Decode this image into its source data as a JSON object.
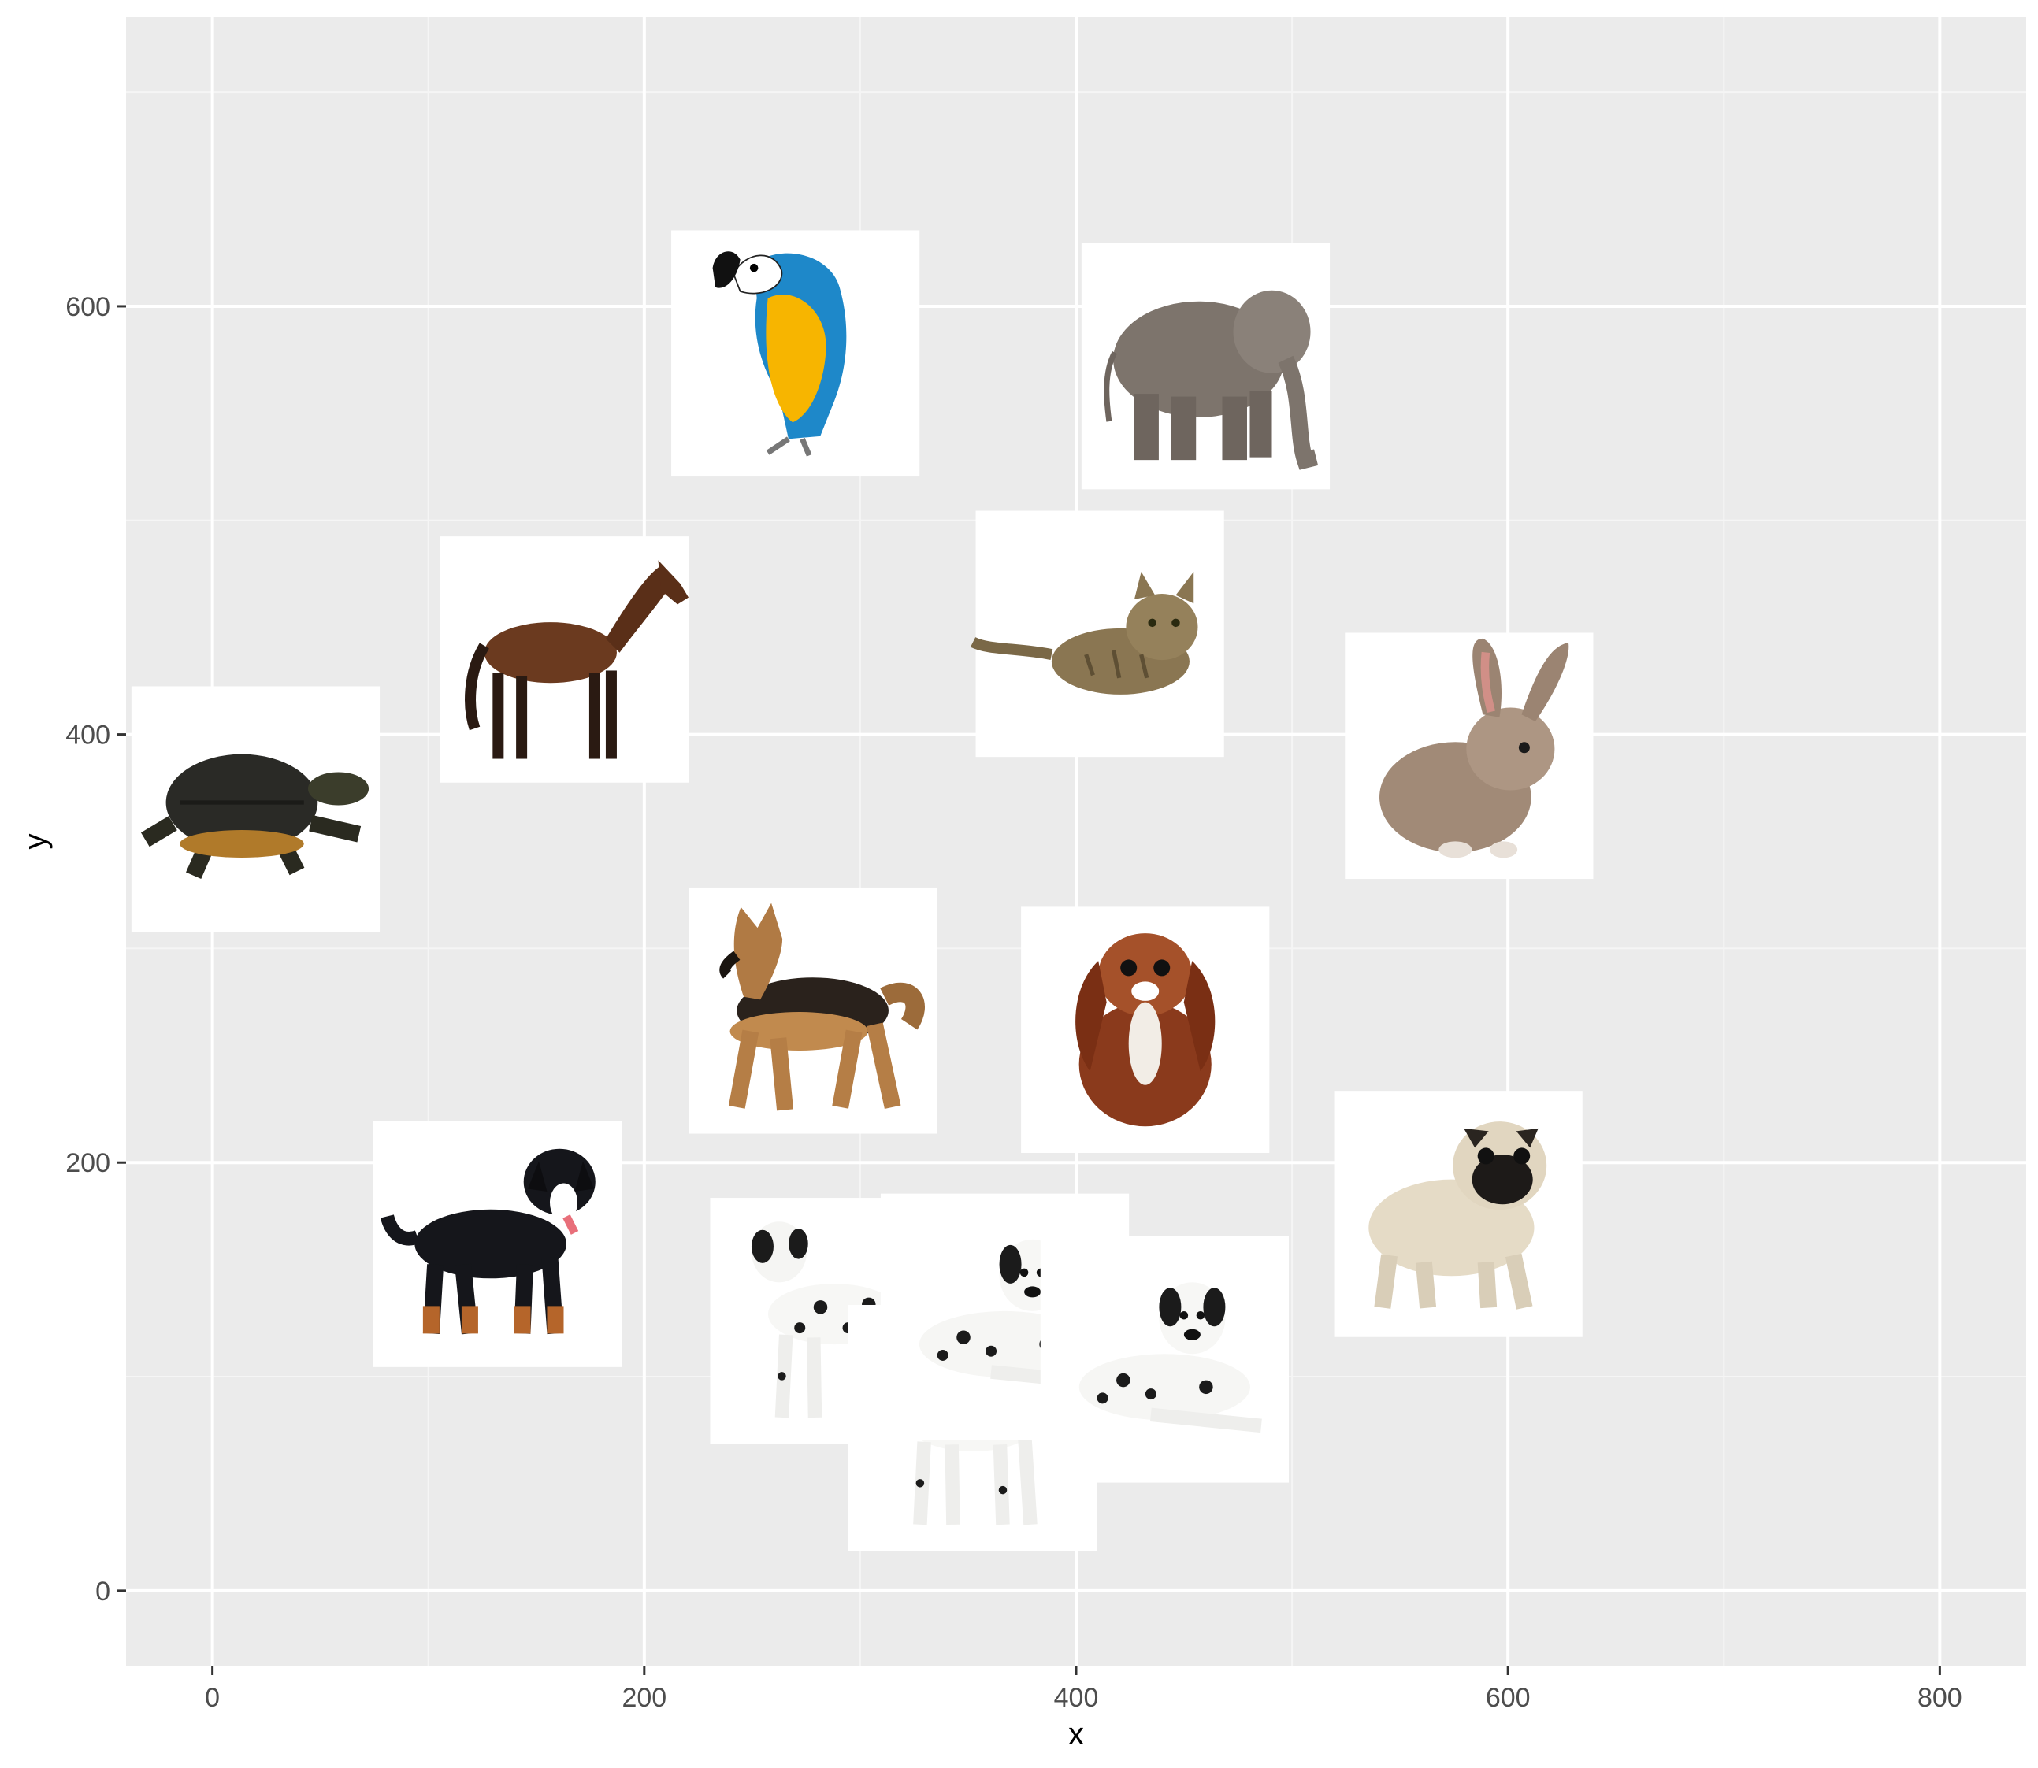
{
  "chart_data": {
    "type": "scatter",
    "title": "",
    "xlabel": "x",
    "ylabel": "y",
    "xlim": [
      -40,
      840
    ],
    "ylim": [
      -35,
      735
    ],
    "x_ticks": [
      0,
      200,
      400,
      600,
      800
    ],
    "y_ticks": [
      0,
      200,
      400,
      600
    ],
    "x_tick_labels": [
      "0",
      "200",
      "400",
      "600",
      "800"
    ],
    "y_tick_labels": [
      "0",
      "200",
      "400",
      "600"
    ],
    "grid": true,
    "legend": "none",
    "marker_style": "square photo thumbnail (white background)",
    "marker_size_data_units": 115,
    "points": [
      {
        "animal": "parrot",
        "x": 270,
        "y": 578
      },
      {
        "animal": "elephant",
        "x": 460,
        "y": 572
      },
      {
        "animal": "horse",
        "x": 163,
        "y": 435
      },
      {
        "animal": "cat",
        "x": 411,
        "y": 447
      },
      {
        "animal": "turtle",
        "x": 20,
        "y": 365
      },
      {
        "animal": "rabbit",
        "x": 582,
        "y": 390
      },
      {
        "animal": "german-shepherd",
        "x": 278,
        "y": 271
      },
      {
        "animal": "spaniel",
        "x": 432,
        "y": 262
      },
      {
        "animal": "bernese-dog",
        "x": 132,
        "y": 162
      },
      {
        "animal": "pug",
        "x": 577,
        "y": 176
      },
      {
        "animal": "dalmatian-standing",
        "x": 288,
        "y": 126
      },
      {
        "animal": "dalmatian-standing-back",
        "x": 352,
        "y": 76
      },
      {
        "animal": "dalmatian-lying",
        "x": 367,
        "y": 128
      },
      {
        "animal": "dalmatian-lying-front",
        "x": 441,
        "y": 108
      }
    ]
  },
  "colors": {
    "panel_background": "#ebebeb",
    "grid_major": "#ffffff",
    "grid_minor": "#f5f5f5",
    "tick_text": "#4d4d4d",
    "axis_title": "#000000"
  }
}
